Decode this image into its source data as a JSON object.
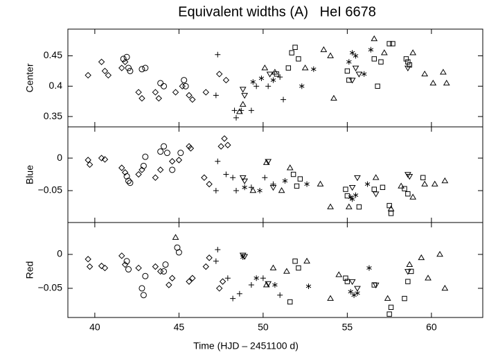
{
  "chart_data": [
    {
      "type": "scatter",
      "title": "Equivalent widths (A)   HeI 6678",
      "ylabel": "Center",
      "xlim": [
        38.4,
        63.05
      ],
      "ylim": [
        0.333,
        0.494
      ],
      "yticks": [
        0.35,
        0.4,
        0.45
      ],
      "series": [
        {
          "marker": "diamond",
          "color": "#000000",
          "x": [
            39.6,
            40.4,
            40.6,
            40.8,
            41.6,
            41.8,
            42.6,
            42.8,
            43.6,
            43.8,
            44.8,
            45.2,
            45.6,
            45.8,
            46.6,
            47.4,
            47.8
          ],
          "values": [
            0.418,
            0.44,
            0.425,
            0.418,
            0.43,
            0.44,
            0.39,
            0.38,
            0.39,
            0.38,
            0.39,
            0.4,
            0.385,
            0.378,
            0.39,
            0.42,
            0.41
          ]
        },
        {
          "marker": "circle",
          "color": "#000000",
          "x": [
            41.7,
            41.9,
            42.0,
            42.1,
            42.8,
            43.0,
            43.9,
            44.1,
            45.3,
            45.4
          ],
          "values": [
            0.445,
            0.448,
            0.43,
            0.425,
            0.428,
            0.43,
            0.405,
            0.4,
            0.41,
            0.4
          ]
        },
        {
          "marker": "plus",
          "color": "#000000",
          "x": [
            47.3,
            47.2,
            48.3,
            48.4,
            48.7,
            49.3,
            49.6,
            50.3,
            51.2,
            51.0
          ],
          "values": [
            0.452,
            0.385,
            0.36,
            0.348,
            0.36,
            0.36,
            0.4,
            0.4,
            0.378,
            0.415
          ]
        },
        {
          "marker": "triangle-down",
          "color": "#000000",
          "x": [
            48.8,
            48.9,
            50.4,
            55.3,
            55.5,
            55.7,
            58.6
          ],
          "values": [
            0.395,
            0.385,
            0.42,
            0.41,
            0.43,
            0.42,
            0.43
          ]
        },
        {
          "marker": "asterisk",
          "color": "#000000",
          "x": [
            49.4,
            49.9,
            50.6,
            52.3,
            53.0,
            55.1,
            55.3,
            55.5,
            56.0,
            56.4
          ],
          "values": [
            0.407,
            0.413,
            0.41,
            0.4,
            0.428,
            0.44,
            0.455,
            0.45,
            0.42,
            0.46
          ]
        },
        {
          "marker": "triangle-up",
          "color": "#000000",
          "x": [
            48.8,
            48.6,
            50.1,
            50.7,
            52.5,
            53.6,
            54.0,
            54.2,
            56.6,
            57.2,
            58.9,
            59.6,
            60.1,
            60.7,
            60.9
          ],
          "values": [
            0.37,
            0.358,
            0.43,
            0.423,
            0.43,
            0.46,
            0.45,
            0.38,
            0.478,
            0.455,
            0.455,
            0.42,
            0.405,
            0.423,
            0.405
          ]
        },
        {
          "marker": "square",
          "color": "#000000",
          "x": [
            50.8,
            51.5,
            51.7,
            51.9,
            52.1,
            55.0,
            55.1,
            56.6,
            56.8,
            57.0,
            57.5,
            57.7,
            58.5,
            58.6,
            58.7
          ],
          "values": [
            0.42,
            0.43,
            0.455,
            0.464,
            0.445,
            0.425,
            0.41,
            0.445,
            0.4,
            0.44,
            0.47,
            0.47,
            0.445,
            0.44,
            0.435
          ]
        }
      ]
    },
    {
      "type": "scatter",
      "ylabel": "Blue",
      "xlim": [
        38.4,
        63.05
      ],
      "ylim": [
        -0.099,
        0.048
      ],
      "yticks": [
        {
          "value": -0.05,
          "label": "−0.05"
        },
        0
      ],
      "series": [
        {
          "marker": "diamond",
          "color": "#000000",
          "x": [
            39.6,
            39.7,
            40.4,
            40.6,
            41.6,
            41.8,
            42.6,
            42.8,
            43.6,
            43.9,
            44.6,
            45.0,
            45.6,
            45.7,
            46.5,
            46.8,
            47.5,
            47.7,
            47.9
          ],
          "values": [
            -0.003,
            -0.01,
            0,
            -0.002,
            -0.015,
            -0.022,
            -0.025,
            -0.018,
            -0.03,
            -0.018,
            -0.005,
            -0.003,
            0.018,
            0.015,
            -0.03,
            -0.04,
            0.018,
            0.03,
            0.02
          ]
        },
        {
          "marker": "circle",
          "color": "#000000",
          "x": [
            41.9,
            42.0,
            42.1,
            42.9,
            43.0,
            43.9,
            44.1,
            44.3,
            44.6,
            45.1
          ],
          "values": [
            -0.028,
            -0.035,
            -0.038,
            -0.012,
            0.002,
            0.01,
            0.018,
            0.008,
            -0.018,
            0.008
          ]
        },
        {
          "marker": "plus",
          "color": "#000000",
          "x": [
            47.3,
            47.2,
            47.8,
            48.2,
            48.4,
            49.3,
            50.1,
            50.6
          ],
          "values": [
            -0.005,
            -0.05,
            -0.025,
            -0.03,
            -0.05,
            -0.045,
            -0.03,
            -0.04
          ]
        },
        {
          "marker": "triangle-down",
          "color": "#000000",
          "x": [
            48.8,
            48.9,
            50.3,
            50.6,
            55.3,
            55.6,
            56.7,
            58.6,
            58.7
          ],
          "values": [
            -0.03,
            -0.035,
            -0.005,
            -0.045,
            -0.045,
            -0.03,
            -0.055,
            -0.025,
            -0.028
          ]
        },
        {
          "marker": "asterisk",
          "color": "#000000",
          "x": [
            48.9,
            49.8,
            51.3,
            52.6,
            55.2,
            55.3,
            55.5,
            56.2
          ],
          "values": [
            -0.045,
            -0.05,
            -0.035,
            -0.04,
            -0.06,
            -0.063,
            -0.057,
            -0.04
          ]
        },
        {
          "marker": "triangle-up",
          "color": "#000000",
          "x": [
            49.4,
            50.2,
            51.1,
            51.6,
            53.4,
            54.0,
            55.1,
            56.7,
            57.6,
            58.2,
            59.6,
            60.2,
            60.8,
            58.9
          ],
          "values": [
            -0.05,
            -0.007,
            -0.05,
            -0.015,
            -0.04,
            -0.075,
            -0.075,
            -0.03,
            -0.078,
            -0.043,
            -0.04,
            -0.04,
            -0.035,
            -0.06
          ]
        },
        {
          "marker": "square",
          "color": "#000000",
          "x": [
            51.8,
            52.0,
            52.2,
            54.9,
            55.0,
            55.7,
            56.6,
            57.1,
            57.5,
            58.4,
            58.6,
            59.5,
            57.6
          ],
          "values": [
            -0.025,
            -0.043,
            -0.032,
            -0.048,
            -0.058,
            -0.075,
            -0.048,
            -0.045,
            -0.073,
            -0.047,
            -0.055,
            -0.03,
            -0.085
          ]
        }
      ]
    },
    {
      "type": "scatter",
      "ylabel": "Red",
      "xlabel": "Time (HJD – 2451100 d)",
      "xlim": [
        38.4,
        63.05
      ],
      "xticks": [
        40,
        45,
        50,
        55,
        60
      ],
      "ylim": [
        -0.093,
        0.047
      ],
      "yticks": [
        {
          "value": -0.05,
          "label": "−0.05"
        },
        0
      ],
      "series": [
        {
          "marker": "diamond",
          "color": "#000000",
          "x": [
            39.6,
            39.7,
            40.4,
            40.6,
            41.6,
            41.8,
            42.6,
            43.6,
            43.9,
            44.4,
            44.6,
            45.6,
            45.8,
            46.6,
            46.8,
            47.4,
            47.6
          ],
          "values": [
            -0.007,
            -0.018,
            -0.017,
            -0.02,
            -0.002,
            -0.015,
            -0.02,
            -0.018,
            -0.025,
            -0.045,
            -0.035,
            -0.04,
            -0.035,
            -0.018,
            -0.005,
            -0.05,
            -0.04
          ]
        },
        {
          "marker": "circle",
          "color": "#000000",
          "x": [
            41.9,
            42.0,
            42.8,
            42.9,
            43.0,
            44.2,
            44.9,
            45.0,
            44.1
          ],
          "values": [
            -0.01,
            -0.022,
            -0.05,
            -0.06,
            -0.032,
            -0.015,
            0.01,
            0.003,
            -0.025
          ]
        },
        {
          "marker": "plus",
          "color": "#000000",
          "x": [
            47.3,
            47.2,
            47.9,
            48.2,
            48.6,
            49.3,
            50.0,
            51.0
          ],
          "values": [
            0.007,
            -0.01,
            -0.035,
            -0.065,
            -0.058,
            -0.045,
            -0.035,
            -0.06
          ]
        },
        {
          "marker": "triangle-down",
          "color": "#000000",
          "x": [
            48.8,
            48.9,
            50.3,
            55.3,
            55.6,
            56.7,
            58.6
          ],
          "values": [
            -0.001,
            -0.003,
            -0.043,
            -0.04,
            -0.05,
            -0.045,
            -0.025
          ]
        },
        {
          "marker": "asterisk",
          "color": "#000000",
          "x": [
            48.8,
            49.6,
            50.7,
            52.7,
            55.2,
            55.4,
            55.6,
            56.3
          ],
          "values": [
            -0.004,
            -0.035,
            -0.045,
            -0.047,
            -0.055,
            -0.06,
            -0.057,
            -0.02
          ]
        },
        {
          "marker": "triangle-up",
          "color": "#000000",
          "x": [
            44.8,
            50.2,
            50.6,
            51.4,
            52.6,
            54.0,
            54.5,
            57.4,
            58.7,
            59.4,
            60.5,
            60.8,
            59.8
          ],
          "values": [
            0.025,
            -0.045,
            -0.02,
            -0.025,
            -0.01,
            -0.065,
            -0.03,
            -0.065,
            -0.015,
            -0.005,
            0.0,
            -0.05,
            -0.035
          ]
        },
        {
          "marker": "square",
          "color": "#000000",
          "x": [
            51.6,
            51.9,
            52.1,
            54.9,
            55.0,
            56.6,
            57.5,
            57.6,
            58.4,
            58.6,
            58.8
          ],
          "values": [
            -0.07,
            -0.01,
            -0.02,
            -0.035,
            -0.04,
            -0.045,
            -0.088,
            -0.078,
            -0.065,
            -0.04,
            -0.025
          ]
        }
      ]
    }
  ]
}
